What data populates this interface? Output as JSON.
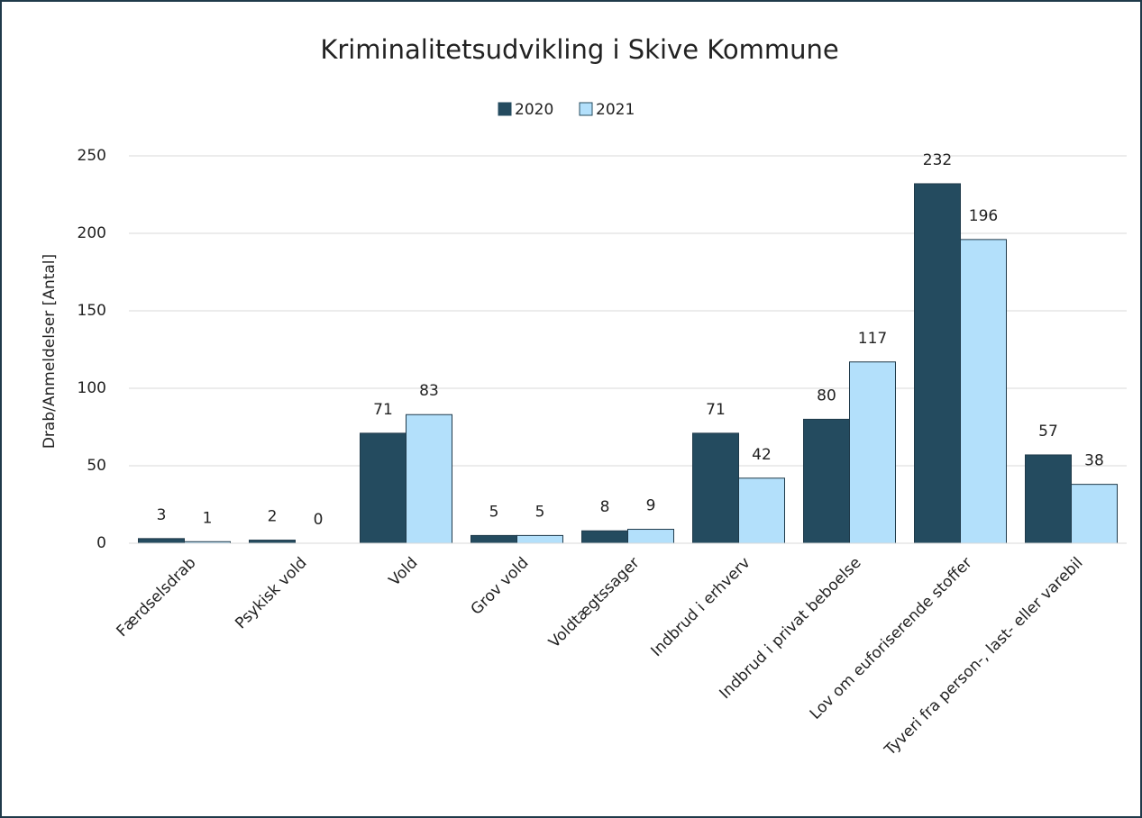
{
  "chart_data": {
    "type": "bar",
    "title": "Kriminalitetsudvikling i Skive Kommune",
    "y_label": "Drab/Anmeldelser [Antal]",
    "categories": [
      "Færdselsdrab",
      "Psykisk vold",
      "Vold",
      "Grov vold",
      "Voldtægtssager",
      "Indbrud i erhverv",
      "Indbrud i privat beboelse",
      "Lov om euforiserende stoffer",
      "Tyveri fra person-, last- eller varebil"
    ],
    "series": [
      {
        "name": "2020",
        "color": "#244b5f",
        "values": [
          3,
          2,
          71,
          5,
          8,
          71,
          80,
          232,
          57
        ]
      },
      {
        "name": "2021",
        "color": "#b3e0fb",
        "values": [
          1,
          0,
          83,
          5,
          9,
          42,
          117,
          196,
          38
        ]
      }
    ],
    "ylim": [
      0,
      250
    ],
    "yticks": [
      0,
      50,
      100,
      150,
      200,
      250
    ],
    "grid": true,
    "legend": "top"
  }
}
